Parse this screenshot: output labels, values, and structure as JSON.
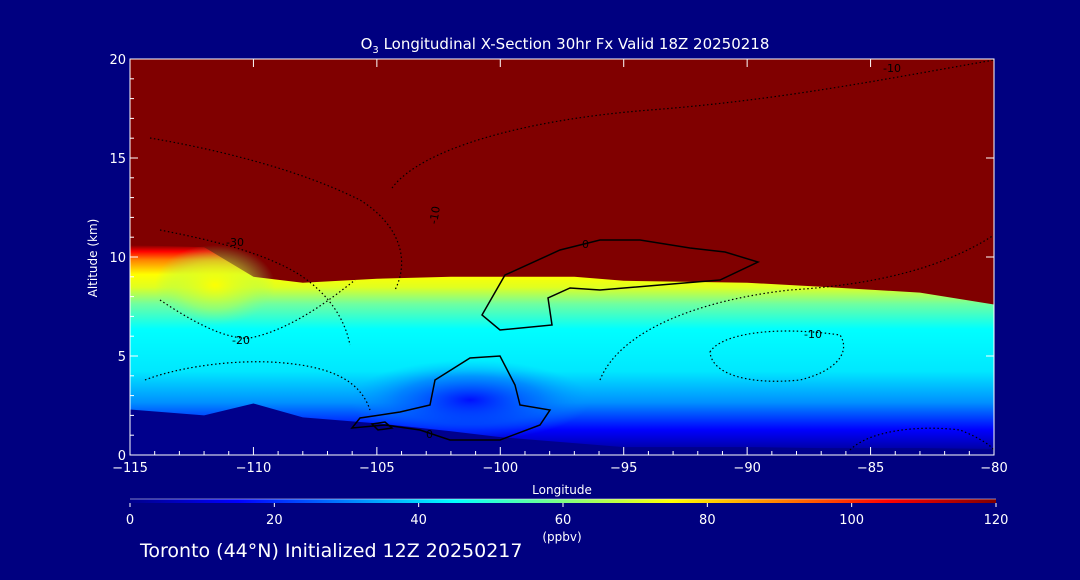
{
  "chart_data": {
    "type": "heatmap",
    "title_prefix": "O",
    "title_sub": "3",
    "title_rest": " Longitudinal X-Section 30hr  Fx Valid 18Z 20250218",
    "xlabel": "Longitude",
    "ylabel": "Altitude (km)",
    "xlim": [
      -115,
      -80
    ],
    "ylim": [
      0,
      20
    ],
    "x_ticks": [
      -115,
      -110,
      -105,
      -100,
      -95,
      -90,
      -85,
      -80
    ],
    "x_tick_labels": [
      "−115",
      "−110",
      "−105",
      "−100",
      "−95",
      "−90",
      "−85",
      "−80"
    ],
    "y_ticks": [
      0,
      5,
      10,
      15,
      20
    ],
    "y_tick_labels": [
      "0",
      "5",
      "10",
      "15",
      "20"
    ],
    "colorbar": {
      "min": 0,
      "max": 120,
      "ticks": [
        0,
        20,
        40,
        60,
        80,
        100,
        120
      ],
      "tick_labels": [
        "0",
        "20",
        "40",
        "60",
        "80",
        "100",
        "120"
      ],
      "unit": "(ppbv)",
      "colors": [
        "#00008c",
        "#0000ff",
        "#0080ff",
        "#00ffff",
        "#80ff80",
        "#ffff00",
        "#ff8000",
        "#ff0000",
        "#800000"
      ]
    },
    "fields": {
      "stratosphere_top_km": [
        10.6,
        10.5,
        9.0,
        8.7,
        8.9,
        9.0,
        9.0,
        9.0,
        8.8,
        8.7,
        8.5,
        8.2,
        7.6
      ],
      "topography_km": [
        2.3,
        2.0,
        2.6,
        1.9,
        1.6,
        1.2,
        0.9,
        0.6,
        0.4,
        0.4,
        0.35,
        0.35,
        0.3
      ],
      "x_nodes": [
        -115,
        -112,
        -110,
        -108,
        -105,
        -102,
        -100,
        -97,
        -95,
        -90,
        -87,
        -83,
        -80
      ]
    },
    "contour_labels": [
      "-10",
      "-30",
      "-20",
      "-10",
      "-10",
      "0",
      "0"
    ]
  },
  "caption": "Toronto (44°N) Initialized 12Z 20250217"
}
